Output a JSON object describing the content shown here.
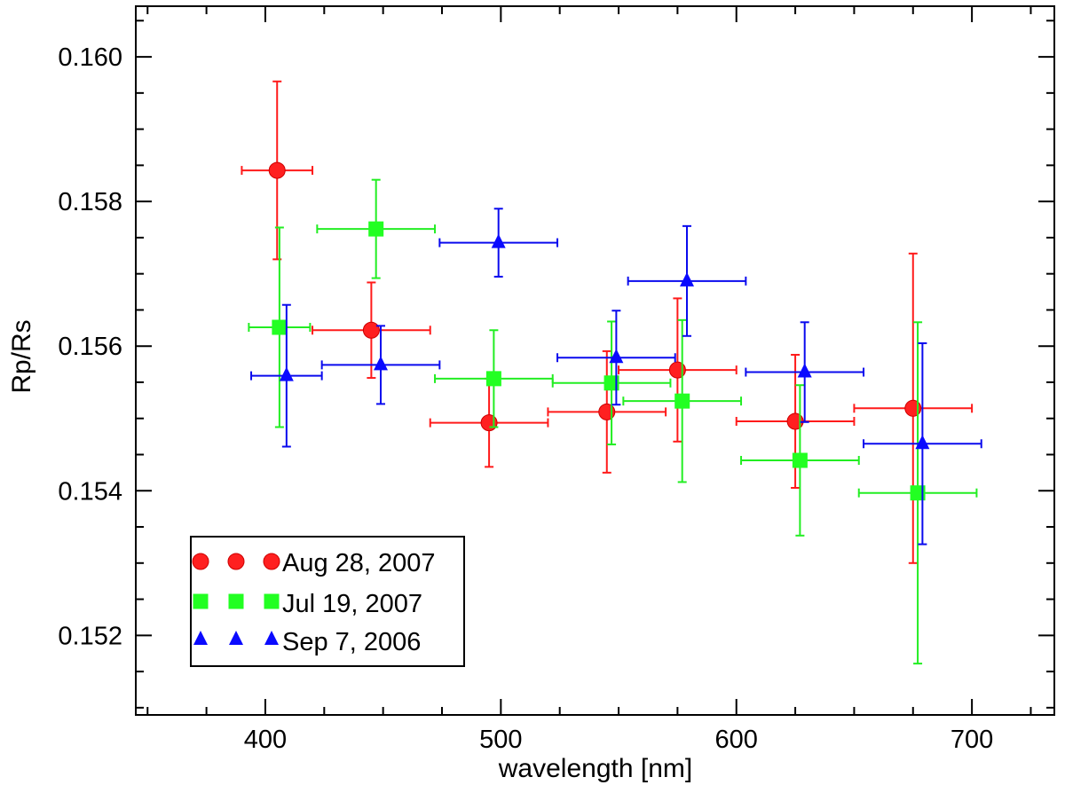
{
  "chart_data": {
    "type": "scatter",
    "title": "",
    "xlabel": "wavelength [nm]",
    "ylabel": "Rp/Rs",
    "xlim": [
      345,
      735
    ],
    "ylim": [
      0.1509,
      0.1607
    ],
    "xticks": [
      400,
      500,
      600,
      700
    ],
    "xtick_labels": [
      "400",
      "500",
      "600",
      "700"
    ],
    "yticks": [
      0.152,
      0.154,
      0.156,
      0.158,
      0.16
    ],
    "ytick_labels": [
      "0.152",
      "0.154",
      "0.156",
      "0.158",
      "0.160"
    ],
    "x_minor_step": 25,
    "y_minor_step": 0.0005,
    "grid": false,
    "legend_position": "bottom-left",
    "series": [
      {
        "name": "Aug 28, 2007",
        "marker": "circle",
        "color": "#ff1a1a",
        "marker_color": "#ff2020",
        "points": [
          {
            "x": 405,
            "y": 0.15843,
            "xerr": 15,
            "yerr": 0.00123
          },
          {
            "x": 445,
            "y": 0.15622,
            "xerr": 25,
            "yerr": 0.00066
          },
          {
            "x": 495,
            "y": 0.15494,
            "xerr": 25,
            "yerr": 0.00061
          },
          {
            "x": 545,
            "y": 0.15509,
            "xerr": 25,
            "yerr": 0.00084
          },
          {
            "x": 575,
            "y": 0.15567,
            "xerr": 25,
            "yerr": 0.00099
          },
          {
            "x": 625,
            "y": 0.15496,
            "xerr": 25,
            "yerr": 0.00092
          },
          {
            "x": 675,
            "y": 0.15514,
            "xerr": 25,
            "yerr": 0.00214
          }
        ]
      },
      {
        "name": "Jul 19, 2007",
        "marker": "square",
        "color": "#22ee22",
        "marker_color": "#22ff22",
        "points": [
          {
            "x": 406,
            "y": 0.15626,
            "xerr": 13,
            "yerr": 0.00138
          },
          {
            "x": 447,
            "y": 0.15762,
            "xerr": 25,
            "yerr": 0.00068
          },
          {
            "x": 497,
            "y": 0.15555,
            "xerr": 25,
            "yerr": 0.00067
          },
          {
            "x": 547,
            "y": 0.15549,
            "xerr": 25,
            "yerr": 0.00085
          },
          {
            "x": 577,
            "y": 0.15524,
            "xerr": 25,
            "yerr": 0.00112
          },
          {
            "x": 627,
            "y": 0.15442,
            "xerr": 25,
            "yerr": 0.00104
          },
          {
            "x": 677,
            "y": 0.15397,
            "xerr": 25,
            "yerr": 0.00236
          }
        ]
      },
      {
        "name": "Sep 7, 2006",
        "marker": "triangle",
        "color": "#0a0aee",
        "marker_color": "#0a0aff",
        "points": [
          {
            "x": 409,
            "y": 0.15559,
            "xerr": 15,
            "yerr": 0.00098
          },
          {
            "x": 449,
            "y": 0.15574,
            "xerr": 25,
            "yerr": 0.00054
          },
          {
            "x": 499,
            "y": 0.15743,
            "xerr": 25,
            "yerr": 0.00047
          },
          {
            "x": 549,
            "y": 0.15584,
            "xerr": 25,
            "yerr": 0.00065
          },
          {
            "x": 579,
            "y": 0.1569,
            "xerr": 25,
            "yerr": 0.00076
          },
          {
            "x": 629,
            "y": 0.15564,
            "xerr": 25,
            "yerr": 0.00069
          },
          {
            "x": 679,
            "y": 0.15465,
            "xerr": 25,
            "yerr": 0.00139
          }
        ]
      }
    ]
  }
}
